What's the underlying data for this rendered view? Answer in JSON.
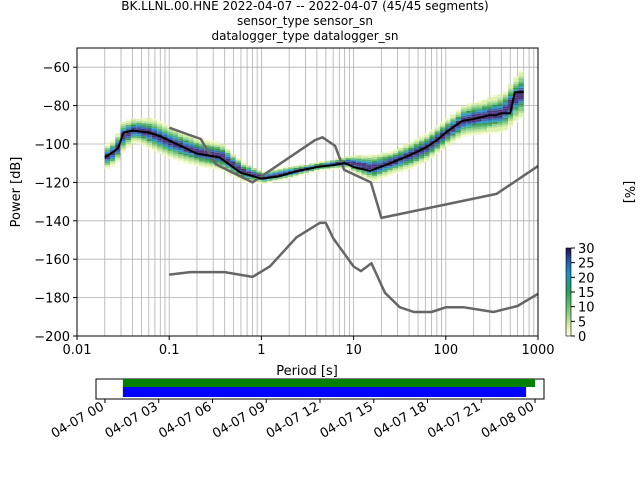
{
  "chart_data": {
    "type": "heatmap",
    "title_lines": [
      "BK.LLNL.00.HNE   2022-04-07 -- 2022-04-07  (45/45 segments)",
      "sensor_type  sensor_sn",
      "datalogger_type  datalogger_sn"
    ],
    "xlabel": "Period [s]",
    "ylabel": "Power [dB]",
    "x_scale": "log",
    "xlim": [
      0.01,
      1000
    ],
    "ylim": [
      -200,
      -50
    ],
    "x_ticks": [
      0.01,
      0.1,
      1,
      10,
      100,
      1000
    ],
    "x_tick_labels": [
      "0.01",
      "0.1",
      "1",
      "10",
      "100",
      "1000"
    ],
    "y_ticks": [
      -200,
      -180,
      -160,
      -140,
      -120,
      -100,
      -80,
      -60
    ],
    "y_tick_labels": [
      "−200",
      "−180",
      "−160",
      "−140",
      "−120",
      "−100",
      "−80",
      "−60"
    ],
    "grid": true,
    "colorbar": {
      "label": "[%]",
      "ticks": [
        0,
        5,
        10,
        15,
        20,
        25,
        30
      ],
      "range": [
        0,
        30
      ]
    },
    "nhnm": {
      "x": [
        0.1,
        0.22,
        0.32,
        0.8,
        3.8,
        4.6,
        6.3,
        7.9,
        15.4,
        20,
        354.8,
        1000
      ],
      "y": [
        -91.5,
        -97.4,
        -110.5,
        -120,
        -98,
        -96.5,
        -101,
        -113.5,
        -120,
        -138.5,
        -126,
        -111.5
      ]
    },
    "nlnm": {
      "x": [
        0.1,
        0.17,
        0.4,
        0.8,
        1.24,
        2.4,
        4.3,
        5,
        6,
        10,
        12,
        15.6,
        21.9,
        31.6,
        45,
        70,
        101,
        154,
        328,
        600,
        1000
      ],
      "y": [
        -168,
        -166.7,
        -166.7,
        -169.2,
        -163.7,
        -148.6,
        -141.1,
        -141.1,
        -149,
        -163.8,
        -166.2,
        -162.1,
        -177.5,
        -185,
        -187.5,
        -187.5,
        -185,
        -185,
        -187.5,
        -184.4,
        -178
      ]
    },
    "mode_line": {
      "x": [
        0.02,
        0.025,
        0.028,
        0.032,
        0.04,
        0.06,
        0.08,
        0.12,
        0.2,
        0.35,
        0.6,
        1,
        1.5,
        2.5,
        4,
        6,
        8,
        9,
        10,
        15,
        25,
        40,
        60,
        80,
        100,
        150,
        200,
        300,
        350,
        400,
        500,
        560,
        700
      ],
      "y": [
        -107,
        -104,
        -102,
        -94,
        -93,
        -94,
        -96,
        -100,
        -105,
        -107,
        -115,
        -118,
        -117,
        -114,
        -112,
        -111,
        -110,
        -111,
        -112,
        -114,
        -110,
        -106,
        -102,
        -98,
        -94,
        -88,
        -87,
        -85,
        -85,
        -84,
        -84,
        -73,
        -73
      ]
    },
    "pdf_band": {
      "x": [
        0.02,
        0.025,
        0.03,
        0.04,
        0.06,
        0.1,
        0.2,
        0.35,
        0.6,
        1,
        2,
        4,
        8,
        10,
        15,
        25,
        40,
        60,
        100,
        150,
        250,
        400,
        560,
        700
      ],
      "center": [
        -107,
        -104,
        -96,
        -93,
        -95,
        -100,
        -105,
        -107,
        -115,
        -118,
        -115,
        -112,
        -110,
        -111,
        -113,
        -110,
        -106,
        -102,
        -94,
        -88,
        -86,
        -84,
        -76,
        -73
      ],
      "spread": [
        6,
        7,
        8,
        6,
        8,
        8,
        7,
        7,
        5,
        3,
        3,
        2,
        3,
        5,
        7,
        6,
        7,
        7,
        7,
        8,
        9,
        10,
        12,
        12
      ]
    },
    "timeline": {
      "tick_labels": [
        "04-07 00",
        "04-07 03",
        "04-07 06",
        "04-07 09",
        "04-07 12",
        "04-07 15",
        "04-07 18",
        "04-07 21",
        "04-08 00"
      ],
      "range_hours": [
        -0.5,
        24.5
      ],
      "available_data": [
        1,
        24
      ],
      "processed_data": [
        1,
        23.5
      ],
      "available_color": "#008000",
      "processed_color": "#0000ff"
    }
  }
}
